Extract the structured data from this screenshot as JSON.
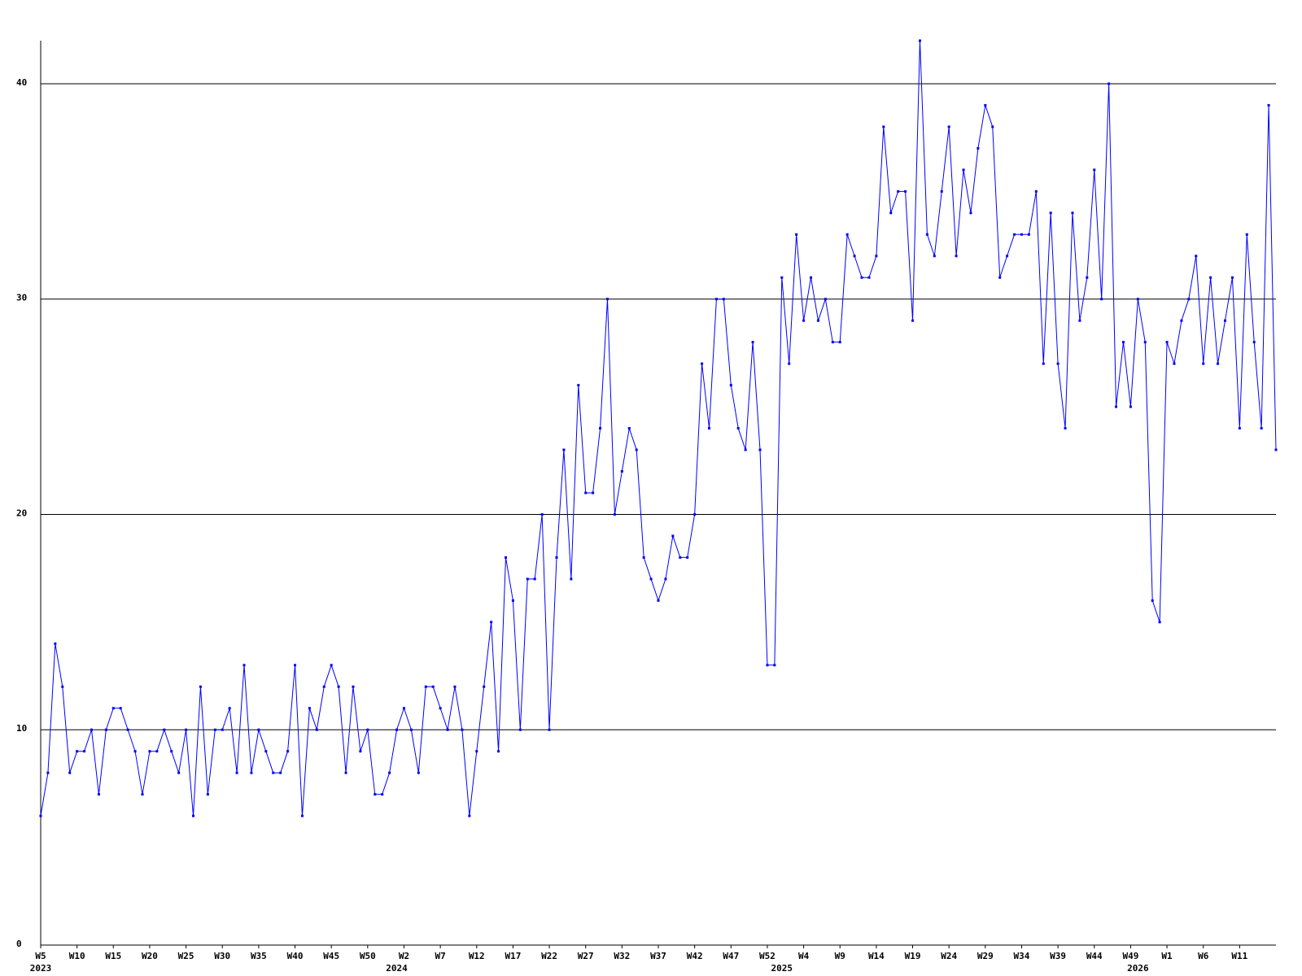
{
  "chart_data": {
    "type": "line",
    "categories": [
      "W5",
      null,
      null,
      null,
      null,
      "W10",
      null,
      null,
      null,
      null,
      "W15",
      null,
      null,
      null,
      null,
      "W20",
      null,
      null,
      null,
      null,
      "W25",
      null,
      null,
      null,
      null,
      "W30",
      null,
      null,
      null,
      null,
      "W35",
      null,
      null,
      null,
      null,
      "W40",
      null,
      null,
      null,
      null,
      "W45",
      null,
      null,
      null,
      null,
      "W50",
      null,
      null,
      null,
      null,
      "W2",
      null,
      null,
      null,
      null,
      "W7",
      null,
      null,
      null,
      null,
      "W12",
      null,
      null,
      null,
      null,
      "W17",
      null,
      null,
      null,
      null,
      "W22",
      null,
      null,
      null,
      null,
      "W27",
      null,
      null,
      null,
      null,
      "W32",
      null,
      null,
      null,
      null,
      "W37",
      null,
      null,
      null,
      null,
      "W42",
      null,
      null,
      null,
      null,
      "W47",
      null,
      null,
      null,
      null,
      "W52",
      null,
      null,
      null,
      null,
      "W4",
      null,
      null,
      null,
      null,
      "W9",
      null,
      null,
      null,
      null,
      "W14",
      null,
      null,
      null,
      null,
      "W19",
      null,
      null,
      null,
      null,
      "W24",
      null,
      null,
      null,
      null,
      "W29",
      null,
      null,
      null,
      null,
      "W34",
      null,
      null,
      null,
      null,
      "W39",
      null,
      null,
      null,
      null,
      "W44",
      null,
      null,
      null,
      null,
      "W49",
      null,
      null,
      null,
      null,
      "W1",
      null,
      null,
      null,
      null,
      "W6",
      null,
      null,
      null,
      null,
      "W11",
      null,
      null,
      null,
      null,
      null
    ],
    "category_years": [
      "2023",
      null,
      null,
      null,
      null,
      null,
      null,
      null,
      null,
      null,
      null,
      null,
      null,
      null,
      null,
      null,
      null,
      null,
      null,
      null,
      null,
      null,
      null,
      null,
      null,
      null,
      null,
      null,
      null,
      null,
      null,
      null,
      null,
      null,
      null,
      null,
      null,
      null,
      null,
      null,
      null,
      null,
      null,
      null,
      null,
      null,
      null,
      null,
      null,
      "2024",
      null,
      null,
      null,
      null,
      null,
      null,
      null,
      null,
      null,
      null,
      null,
      null,
      null,
      null,
      null,
      null,
      null,
      null,
      null,
      null,
      null,
      null,
      null,
      null,
      null,
      null,
      null,
      null,
      null,
      null,
      null,
      null,
      null,
      null,
      null,
      null,
      null,
      null,
      null,
      null,
      null,
      null,
      null,
      null,
      null,
      null,
      null,
      null,
      null,
      null,
      null,
      null,
      "2025",
      null,
      null,
      null,
      null,
      null,
      null,
      null,
      null,
      null,
      null,
      null,
      null,
      null,
      null,
      null,
      null,
      null,
      null,
      null,
      null,
      null,
      null,
      null,
      null,
      null,
      null,
      null,
      null,
      null,
      null,
      null,
      null,
      null,
      null,
      null,
      null,
      null,
      null,
      null,
      null,
      null,
      null,
      null,
      null,
      null,
      null,
      null,
      null,
      "2026",
      null,
      null,
      null,
      null,
      null,
      null,
      null,
      null,
      null,
      null,
      null,
      null,
      null,
      null,
      null
    ],
    "series": [
      {
        "color": "#0000ff",
        "values": [
          6,
          8,
          14,
          12,
          8,
          9,
          9,
          10,
          7,
          10,
          11,
          11,
          10,
          9,
          7,
          9,
          9,
          10,
          9,
          8,
          10,
          6,
          12,
          7,
          10,
          10,
          11,
          8,
          13,
          8,
          10,
          9,
          8,
          8,
          9,
          13,
          6,
          11,
          10,
          12,
          13,
          12,
          8,
          12,
          9,
          10,
          7,
          7,
          8,
          10,
          11,
          10,
          8,
          12,
          12,
          11,
          10,
          12,
          10,
          6,
          9,
          12,
          15,
          9,
          18,
          16,
          10,
          17,
          17,
          20,
          10,
          18,
          23,
          17,
          26,
          21,
          21,
          24,
          30,
          20,
          22,
          24,
          23,
          18,
          17,
          16,
          17,
          19,
          18,
          18,
          20,
          27,
          24,
          30,
          30,
          26,
          24,
          23,
          28,
          23,
          13,
          13,
          31,
          27,
          33,
          29,
          31,
          29,
          30,
          28,
          28,
          33,
          32,
          31,
          31,
          32,
          38,
          34,
          35,
          35,
          29,
          42,
          33,
          32,
          35,
          38,
          32,
          36,
          34,
          37,
          39,
          38,
          31,
          32,
          33,
          33,
          33,
          35,
          27,
          34,
          27,
          24,
          34,
          29,
          31,
          36,
          30,
          40,
          25,
          28,
          25,
          30,
          28,
          16,
          15,
          28,
          27,
          29,
          30,
          32,
          27,
          31,
          27,
          29,
          31,
          24,
          33,
          28,
          24,
          39,
          23
        ]
      }
    ],
    "ylim": [
      0,
      42
    ],
    "yticks": [
      0,
      10,
      20,
      30,
      40
    ],
    "grid": true
  }
}
